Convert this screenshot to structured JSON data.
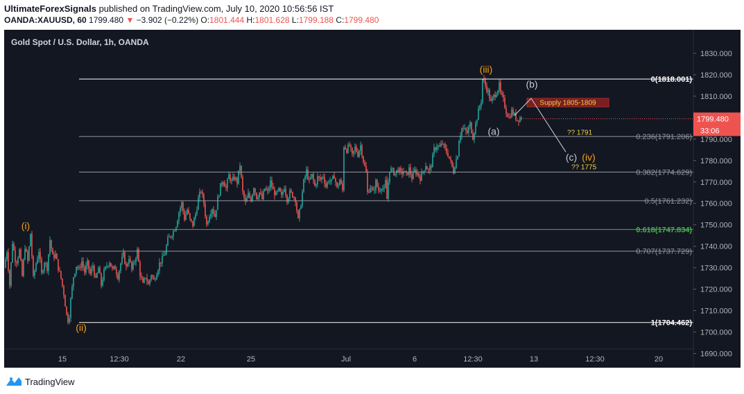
{
  "header": {
    "publisher": "UltimateForexSignals",
    "published_text": "published on TradingView.com, July 10, 2020 10:56:56 IST",
    "symbol": "OANDA:XAUUSD, 60",
    "last": "1799.480",
    "change_arrow": "▼",
    "change": "−3.902 (−0.22%)",
    "o_label": "O:",
    "o_value": "1801.444",
    "h_label": "H:",
    "h_value": "1801.628",
    "l_label": "L:",
    "l_value": "1799.188",
    "c_label": "C:",
    "c_value": "1799.480"
  },
  "footer": {
    "brand": "TradingView"
  },
  "colors": {
    "background": "#131722",
    "up": "#26a69a",
    "down": "#ef5350",
    "fib": "#9598a1",
    "fib_green": "#4caf50",
    "wave_orange": "#f7a11a",
    "wave_gray": "#c8cbd2",
    "note_yellow": "#f0d043"
  },
  "chart_data": {
    "type": "candlestick",
    "title": "Gold Spot / U.S. Dollar, 1h, OANDA",
    "ylim": [
      1685,
      1840
    ],
    "y_ticks": [
      "1690.000",
      "1700.000",
      "1710.000",
      "1720.000",
      "1730.000",
      "1740.000",
      "1750.000",
      "1760.000",
      "1770.000",
      "1780.000",
      "1790.000",
      "1800.000",
      "1810.000",
      "1820.000",
      "1830.000"
    ],
    "x_ticks": [
      "15",
      "12:30",
      "22",
      "25",
      "Jul",
      "6",
      "12:30",
      "13",
      "12:30",
      "20"
    ],
    "price_label": {
      "value": "1799.480",
      "countdown": "33:06"
    },
    "price_path": [
      [
        0,
        1730
      ],
      [
        4,
        1738
      ],
      [
        8,
        1722
      ],
      [
        12,
        1742
      ],
      [
        17,
        1732
      ],
      [
        22,
        1738
      ],
      [
        26,
        1726
      ],
      [
        30,
        1740
      ],
      [
        34,
        1733
      ],
      [
        38,
        1746
      ],
      [
        42,
        1725
      ],
      [
        46,
        1732
      ],
      [
        50,
        1738
      ],
      [
        54,
        1727
      ],
      [
        58,
        1733
      ],
      [
        62,
        1730
      ],
      [
        66,
        1743
      ],
      [
        70,
        1735
      ],
      [
        74,
        1736
      ],
      [
        78,
        1730
      ],
      [
        82,
        1725
      ],
      [
        86,
        1718
      ],
      [
        90,
        1708
      ],
      [
        93,
        1704.5
      ],
      [
        96,
        1715
      ],
      [
        100,
        1726
      ],
      [
        104,
        1731
      ],
      [
        108,
        1729
      ],
      [
        112,
        1733
      ],
      [
        116,
        1728
      ],
      [
        120,
        1732
      ],
      [
        124,
        1727
      ],
      [
        128,
        1731
      ],
      [
        132,
        1724
      ],
      [
        136,
        1730
      ],
      [
        140,
        1722
      ],
      [
        144,
        1728
      ],
      [
        148,
        1731
      ],
      [
        152,
        1733
      ],
      [
        156,
        1729
      ],
      [
        160,
        1730
      ],
      [
        164,
        1726
      ],
      [
        168,
        1732
      ],
      [
        172,
        1736
      ],
      [
        176,
        1730
      ],
      [
        180,
        1735
      ],
      [
        184,
        1729
      ],
      [
        188,
        1733
      ],
      [
        192,
        1738
      ],
      [
        196,
        1727
      ],
      [
        200,
        1722
      ],
      [
        204,
        1726
      ],
      [
        208,
        1722
      ],
      [
        212,
        1727
      ],
      [
        216,
        1724
      ],
      [
        220,
        1728
      ],
      [
        224,
        1732
      ],
      [
        228,
        1734
      ],
      [
        232,
        1737
      ],
      [
        236,
        1743
      ],
      [
        240,
        1745
      ],
      [
        244,
        1747
      ],
      [
        248,
        1750
      ],
      [
        252,
        1756
      ],
      [
        256,
        1760
      ],
      [
        260,
        1753
      ],
      [
        264,
        1757
      ],
      [
        268,
        1752
      ],
      [
        272,
        1750
      ],
      [
        276,
        1755
      ],
      [
        280,
        1762
      ],
      [
        284,
        1766
      ],
      [
        288,
        1760
      ],
      [
        292,
        1750
      ],
      [
        296,
        1755
      ],
      [
        300,
        1758
      ],
      [
        304,
        1754
      ],
      [
        308,
        1762
      ],
      [
        312,
        1768
      ],
      [
        316,
        1771
      ],
      [
        320,
        1767
      ],
      [
        324,
        1773
      ],
      [
        328,
        1770
      ],
      [
        332,
        1772
      ],
      [
        336,
        1770
      ],
      [
        340,
        1778
      ],
      [
        344,
        1765
      ],
      [
        348,
        1760
      ],
      [
        352,
        1764
      ],
      [
        356,
        1762
      ],
      [
        360,
        1768
      ],
      [
        364,
        1763
      ],
      [
        368,
        1765
      ],
      [
        372,
        1762
      ],
      [
        376,
        1767
      ],
      [
        380,
        1765
      ],
      [
        384,
        1770
      ],
      [
        388,
        1766
      ],
      [
        392,
        1764
      ],
      [
        396,
        1766
      ],
      [
        400,
        1763
      ],
      [
        404,
        1768
      ],
      [
        408,
        1762
      ],
      [
        412,
        1765
      ],
      [
        416,
        1764
      ],
      [
        420,
        1762
      ],
      [
        424,
        1752
      ],
      [
        428,
        1760
      ],
      [
        432,
        1770
      ],
      [
        436,
        1775
      ],
      [
        440,
        1770
      ],
      [
        444,
        1773
      ],
      [
        448,
        1768
      ],
      [
        452,
        1772
      ],
      [
        456,
        1771
      ],
      [
        460,
        1773
      ],
      [
        464,
        1768
      ],
      [
        468,
        1771
      ],
      [
        472,
        1770
      ],
      [
        476,
        1773
      ],
      [
        480,
        1767
      ],
      [
        484,
        1771
      ],
      [
        488,
        1766
      ],
      [
        490,
        1787
      ],
      [
        494,
        1785
      ],
      [
        498,
        1787
      ],
      [
        502,
        1782
      ],
      [
        506,
        1786
      ],
      [
        510,
        1783
      ],
      [
        514,
        1787
      ],
      [
        518,
        1780
      ],
      [
        522,
        1774
      ],
      [
        524,
        1765
      ],
      [
        528,
        1768
      ],
      [
        532,
        1765
      ],
      [
        536,
        1770
      ],
      [
        540,
        1766
      ],
      [
        544,
        1768
      ],
      [
        548,
        1766
      ],
      [
        550,
        1770
      ],
      [
        552,
        1762
      ],
      [
        554,
        1770
      ],
      [
        556,
        1776
      ],
      [
        560,
        1775
      ],
      [
        564,
        1774
      ],
      [
        568,
        1776
      ],
      [
        572,
        1774
      ],
      [
        576,
        1775
      ],
      [
        580,
        1773
      ],
      [
        584,
        1776
      ],
      [
        588,
        1772
      ],
      [
        592,
        1775
      ],
      [
        596,
        1774
      ],
      [
        600,
        1772
      ],
      [
        604,
        1775
      ],
      [
        608,
        1778
      ],
      [
        612,
        1775
      ],
      [
        616,
        1778
      ],
      [
        620,
        1785
      ],
      [
        624,
        1787
      ],
      [
        628,
        1786
      ],
      [
        632,
        1788
      ],
      [
        636,
        1785
      ],
      [
        640,
        1783
      ],
      [
        644,
        1779
      ],
      [
        648,
        1775
      ],
      [
        650,
        1778
      ],
      [
        654,
        1783
      ],
      [
        656,
        1790
      ],
      [
        660,
        1795
      ],
      [
        664,
        1794
      ],
      [
        668,
        1793
      ],
      [
        672,
        1797
      ],
      [
        676,
        1791
      ],
      [
        680,
        1797
      ],
      [
        684,
        1803
      ],
      [
        688,
        1808
      ],
      [
        690,
        1818
      ],
      [
        694,
        1815
      ],
      [
        698,
        1812
      ],
      [
        702,
        1807
      ],
      [
        706,
        1810
      ],
      [
        710,
        1812
      ],
      [
        714,
        1815
      ],
      [
        716,
        1811
      ],
      [
        720,
        1808
      ],
      [
        724,
        1803
      ],
      [
        728,
        1800
      ],
      [
        732,
        1803
      ],
      [
        736,
        1801
      ],
      [
        740,
        1799
      ],
      [
        744,
        1800
      ],
      [
        746,
        1799.48
      ]
    ],
    "fib_levels": [
      {
        "label": "0(1818.001)",
        "value": 1818.001,
        "bold": true,
        "color": "#ffffff"
      },
      {
        "label": "0.236(1791.206)",
        "value": 1791.206,
        "bold": false,
        "color": "#9598a1"
      },
      {
        "label": "0.382(1774.629)",
        "value": 1774.629,
        "bold": false,
        "color": "#9598a1"
      },
      {
        "label": "0.5(1761.232)",
        "value": 1761.232,
        "bold": false,
        "color": "#9598a1"
      },
      {
        "label": "0.618(1747.834)",
        "value": 1747.834,
        "bold": true,
        "color": "#4caf50"
      },
      {
        "label": "0.707(1737.729)",
        "value": 1737.729,
        "bold": false,
        "color": "#9598a1"
      },
      {
        "label": "1(1704.462)",
        "value": 1704.462,
        "bold": true,
        "color": "#ffffff"
      }
    ],
    "wave_labels": [
      {
        "text": "(i)",
        "color": "orange",
        "x": 31,
        "price": 1748
      },
      {
        "text": "(ii)",
        "color": "orange",
        "x": 111,
        "price": 1700.5
      },
      {
        "text": "(iii)",
        "color": "orange",
        "x": 695,
        "price": 1821
      },
      {
        "text": "(a)",
        "color": "gray",
        "x": 706,
        "price": 1792
      },
      {
        "text": "(b)",
        "color": "gray",
        "x": 761,
        "price": 1814
      },
      {
        "text": "(c)",
        "color": "gray",
        "x": 818,
        "price": 1780
      },
      {
        "text": "(iv)",
        "color": "orange",
        "x": 843,
        "price": 1780
      }
    ],
    "projection": [
      [
        736,
        1801
      ],
      [
        760,
        1809
      ],
      [
        810,
        1784
      ]
    ],
    "supply_zone": {
      "label": "Supply 1805-1809",
      "low": 1805,
      "high": 1809,
      "x_start": 754,
      "x_end": 872
    },
    "annotations": [
      {
        "text": "?? 1791",
        "x": 812,
        "price": 1791
      },
      {
        "text": "?? 1775",
        "x": 818,
        "price": 1775
      }
    ]
  }
}
